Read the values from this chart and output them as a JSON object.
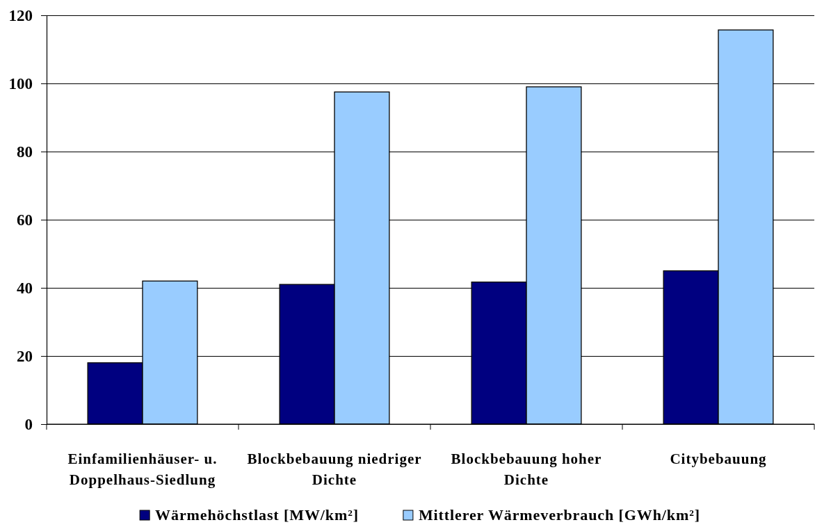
{
  "chart_data": {
    "type": "bar",
    "categories": [
      "Einfamilienhäuser- u. Doppelhaus-Siedlung",
      "Blockbebauung niedriger Dichte",
      "Blockbebauung hoher Dichte",
      "Citybebauung"
    ],
    "series": [
      {
        "name": "Wärmehöchstlast [MW/km²]",
        "color": "#000080",
        "values": [
          18,
          41,
          41.7,
          45
        ]
      },
      {
        "name": "Mittlerer Wärmeverbrauch [GWh/km²]",
        "color": "#99ccff",
        "values": [
          42,
          97.5,
          99,
          115.7
        ]
      }
    ],
    "ylim": [
      0,
      120
    ],
    "yticks": [
      0,
      20,
      40,
      60,
      80,
      100,
      120
    ],
    "grid": "y",
    "legend": "bottom"
  }
}
